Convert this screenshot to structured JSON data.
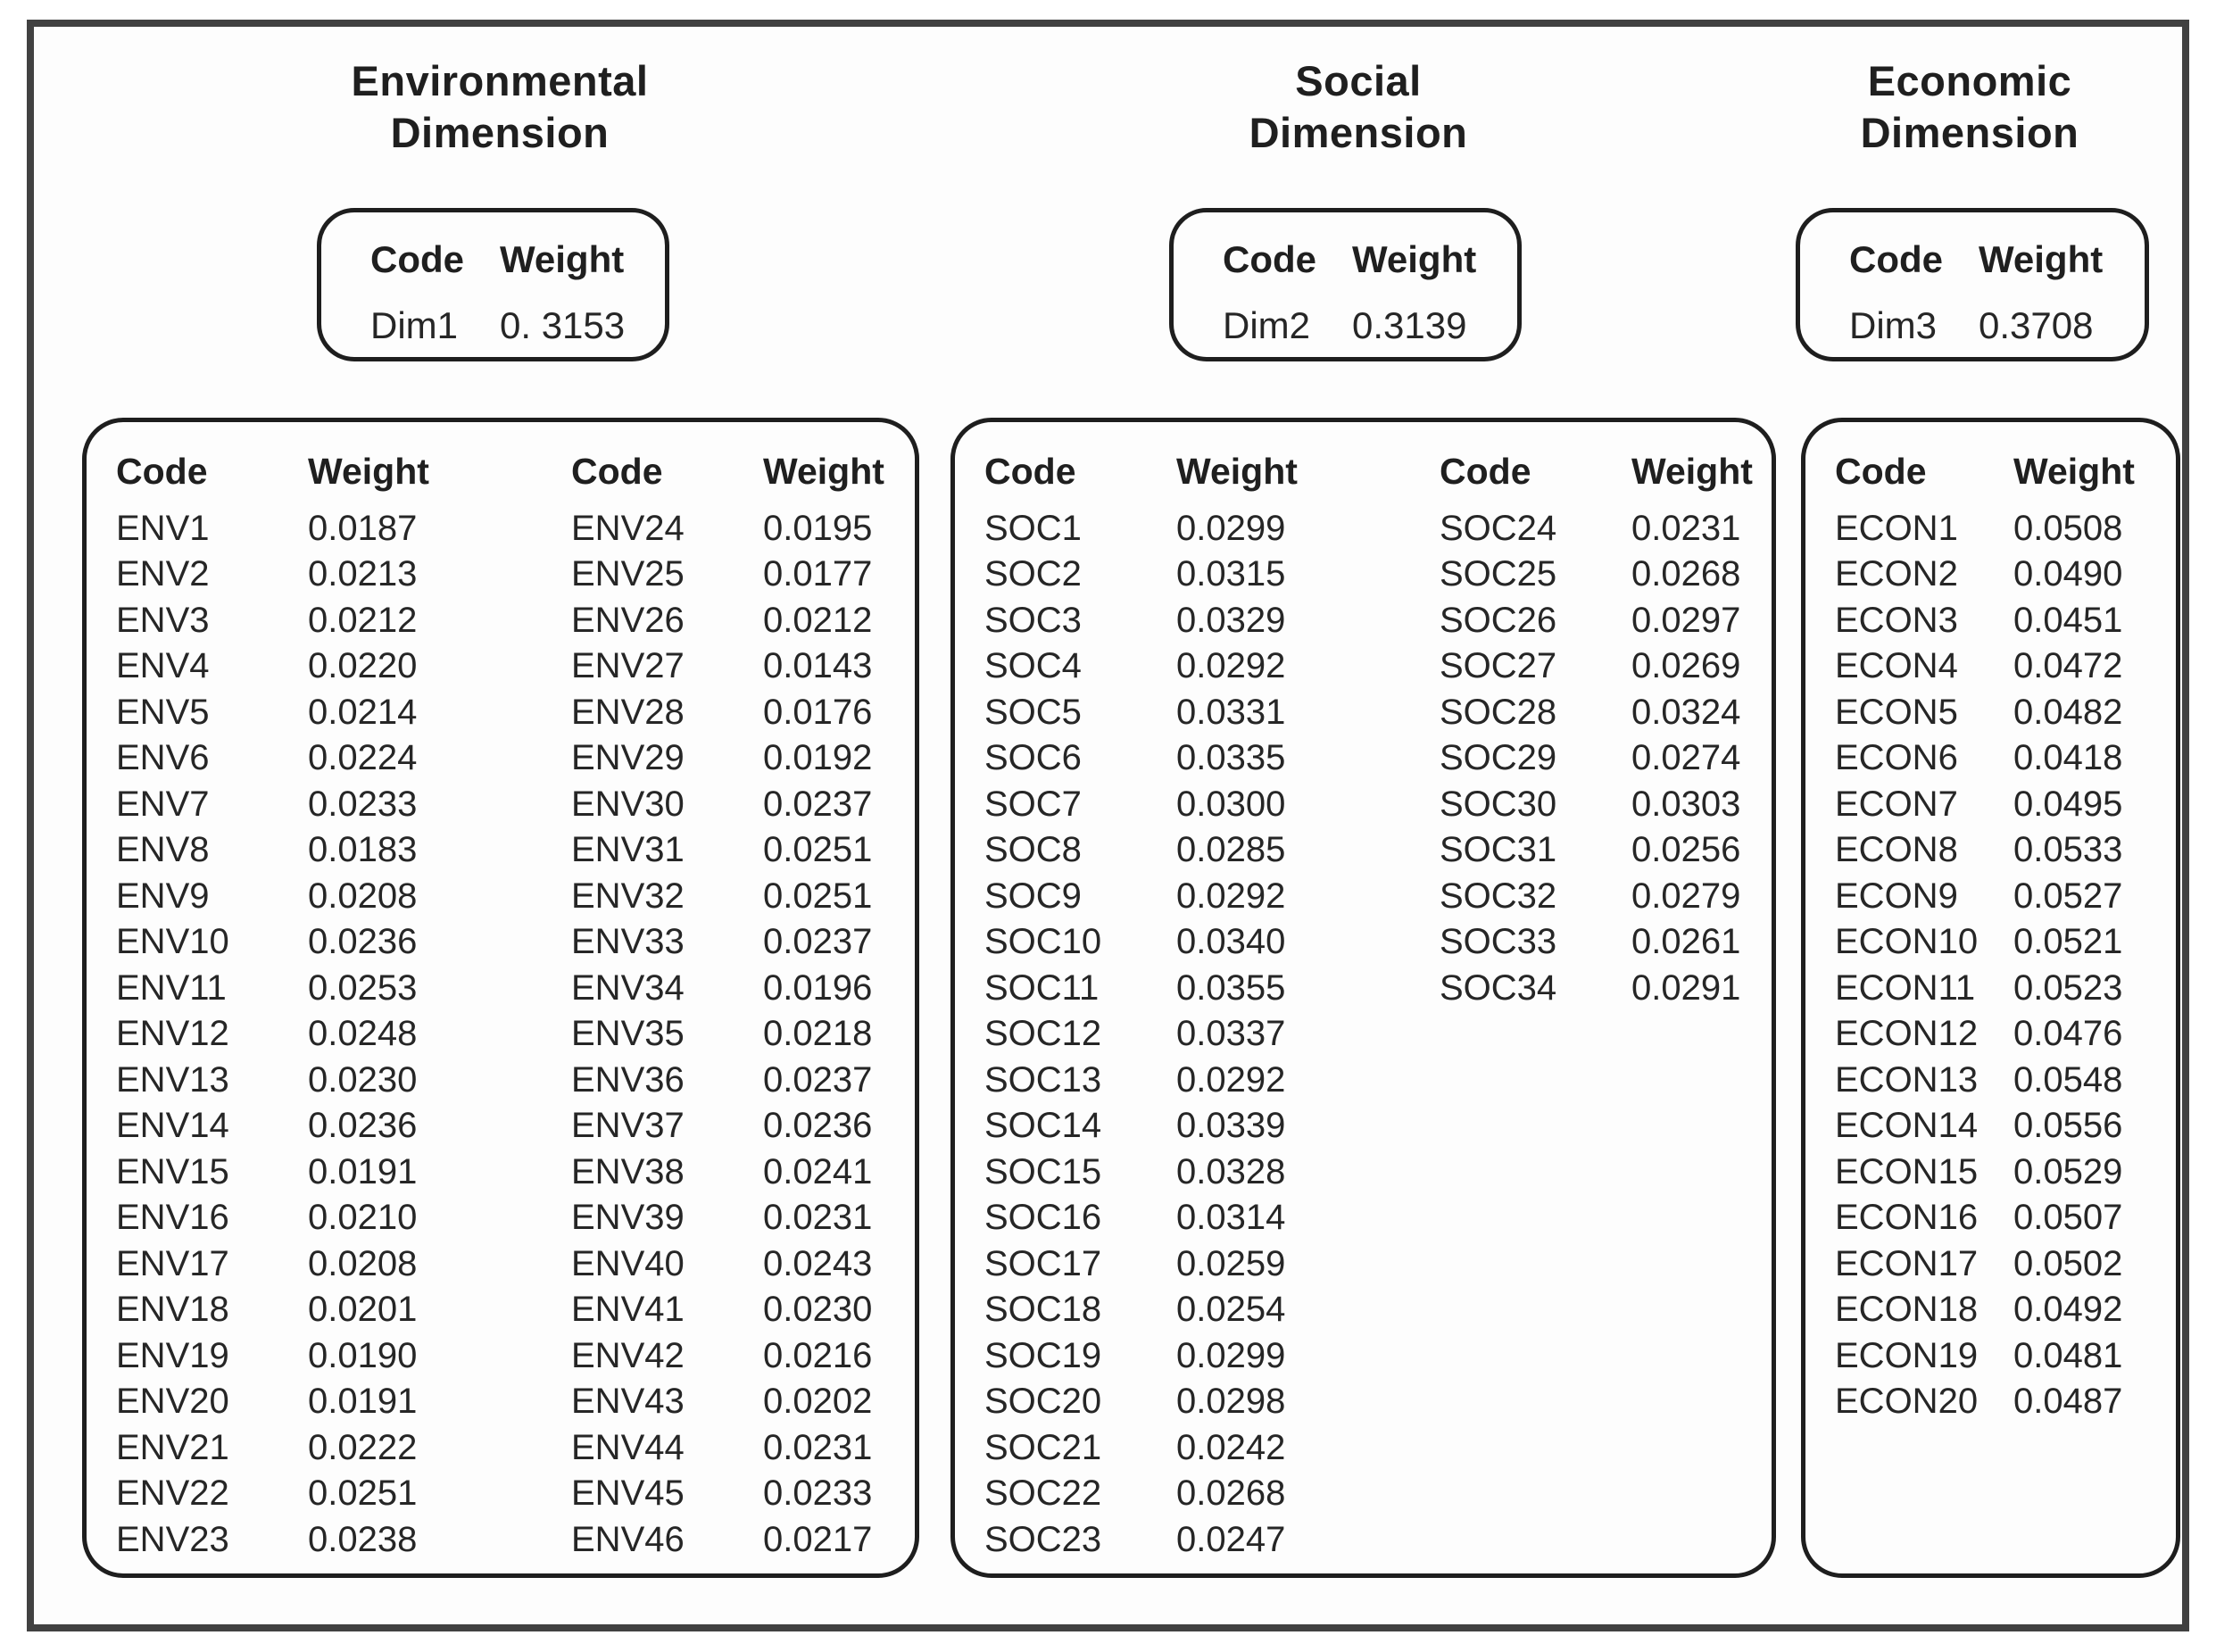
{
  "colors": {
    "outer_border": "#414141",
    "box_border": "#1e1e1e",
    "text": "#262626",
    "background": "#fdfdfd"
  },
  "figure": {
    "sections": [
      {
        "id": "environmental",
        "title_line1": "Environmental",
        "title_line2": "Dimension",
        "dim_box": {
          "code_header": "Code",
          "weight_header": "Weight",
          "code": "Dim1",
          "weight": "0. 3153"
        },
        "tables": [
          {
            "code_header": "Code",
            "weight_header": "Weight",
            "rows": [
              {
                "code": "ENV1",
                "weight": "0.0187"
              },
              {
                "code": "ENV2",
                "weight": "0.0213"
              },
              {
                "code": "ENV3",
                "weight": "0.0212"
              },
              {
                "code": "ENV4",
                "weight": "0.0220"
              },
              {
                "code": "ENV5",
                "weight": "0.0214"
              },
              {
                "code": "ENV6",
                "weight": "0.0224"
              },
              {
                "code": "ENV7",
                "weight": "0.0233"
              },
              {
                "code": "ENV8",
                "weight": "0.0183"
              },
              {
                "code": "ENV9",
                "weight": "0.0208"
              },
              {
                "code": "ENV10",
                "weight": "0.0236"
              },
              {
                "code": "ENV11",
                "weight": "0.0253"
              },
              {
                "code": "ENV12",
                "weight": "0.0248"
              },
              {
                "code": "ENV13",
                "weight": "0.0230"
              },
              {
                "code": "ENV14",
                "weight": "0.0236"
              },
              {
                "code": "ENV15",
                "weight": "0.0191"
              },
              {
                "code": "ENV16",
                "weight": "0.0210"
              },
              {
                "code": "ENV17",
                "weight": "0.0208"
              },
              {
                "code": "ENV18",
                "weight": "0.0201"
              },
              {
                "code": "ENV19",
                "weight": "0.0190"
              },
              {
                "code": "ENV20",
                "weight": "0.0191"
              },
              {
                "code": "ENV21",
                "weight": "0.0222"
              },
              {
                "code": "ENV22",
                "weight": "0.0251"
              },
              {
                "code": "ENV23",
                "weight": "0.0238"
              }
            ]
          },
          {
            "code_header": "Code",
            "weight_header": "Weight",
            "rows": [
              {
                "code": "ENV24",
                "weight": "0.0195"
              },
              {
                "code": "ENV25",
                "weight": "0.0177"
              },
              {
                "code": "ENV26",
                "weight": "0.0212"
              },
              {
                "code": "ENV27",
                "weight": "0.0143"
              },
              {
                "code": "ENV28",
                "weight": "0.0176"
              },
              {
                "code": "ENV29",
                "weight": "0.0192"
              },
              {
                "code": "ENV30",
                "weight": "0.0237"
              },
              {
                "code": "ENV31",
                "weight": "0.0251"
              },
              {
                "code": "ENV32",
                "weight": "0.0251"
              },
              {
                "code": "ENV33",
                "weight": "0.0237"
              },
              {
                "code": "ENV34",
                "weight": "0.0196"
              },
              {
                "code": "ENV35",
                "weight": "0.0218"
              },
              {
                "code": "ENV36",
                "weight": "0.0237"
              },
              {
                "code": "ENV37",
                "weight": "0.0236"
              },
              {
                "code": "ENV38",
                "weight": "0.0241"
              },
              {
                "code": "ENV39",
                "weight": "0.0231"
              },
              {
                "code": "ENV40",
                "weight": "0.0243"
              },
              {
                "code": "ENV41",
                "weight": "0.0230"
              },
              {
                "code": "ENV42",
                "weight": "0.0216"
              },
              {
                "code": "ENV43",
                "weight": "0.0202"
              },
              {
                "code": "ENV44",
                "weight": "0.0231"
              },
              {
                "code": "ENV45",
                "weight": "0.0233"
              },
              {
                "code": "ENV46",
                "weight": "0.0217"
              }
            ]
          }
        ]
      },
      {
        "id": "social",
        "title_line1": "Social",
        "title_line2": "Dimension",
        "dim_box": {
          "code_header": "Code",
          "weight_header": "Weight",
          "code": "Dim2",
          "weight": "0.3139"
        },
        "tables": [
          {
            "code_header": "Code",
            "weight_header": "Weight",
            "rows": [
              {
                "code": "SOC1",
                "weight": "0.0299"
              },
              {
                "code": "SOC2",
                "weight": "0.0315"
              },
              {
                "code": "SOC3",
                "weight": "0.0329"
              },
              {
                "code": "SOC4",
                "weight": "0.0292"
              },
              {
                "code": "SOC5",
                "weight": "0.0331"
              },
              {
                "code": "SOC6",
                "weight": "0.0335"
              },
              {
                "code": "SOC7",
                "weight": "0.0300"
              },
              {
                "code": "SOC8",
                "weight": "0.0285"
              },
              {
                "code": "SOC9",
                "weight": "0.0292"
              },
              {
                "code": "SOC10",
                "weight": "0.0340"
              },
              {
                "code": "SOC11",
                "weight": "0.0355"
              },
              {
                "code": "SOC12",
                "weight": "0.0337"
              },
              {
                "code": "SOC13",
                "weight": "0.0292"
              },
              {
                "code": "SOC14",
                "weight": "0.0339"
              },
              {
                "code": "SOC15",
                "weight": "0.0328"
              },
              {
                "code": "SOC16",
                "weight": "0.0314"
              },
              {
                "code": "SOC17",
                "weight": "0.0259"
              },
              {
                "code": "SOC18",
                "weight": "0.0254"
              },
              {
                "code": "SOC19",
                "weight": "0.0299"
              },
              {
                "code": "SOC20",
                "weight": "0.0298"
              },
              {
                "code": "SOC21",
                "weight": "0.0242"
              },
              {
                "code": "SOC22",
                "weight": "0.0268"
              },
              {
                "code": "SOC23",
                "weight": "0.0247"
              }
            ]
          },
          {
            "code_header": "Code",
            "weight_header": "Weight",
            "rows": [
              {
                "code": "SOC24",
                "weight": "0.0231"
              },
              {
                "code": "SOC25",
                "weight": "0.0268"
              },
              {
                "code": "SOC26",
                "weight": "0.0297"
              },
              {
                "code": "SOC27",
                "weight": "0.0269"
              },
              {
                "code": "SOC28",
                "weight": "0.0324"
              },
              {
                "code": "SOC29",
                "weight": "0.0274"
              },
              {
                "code": "SOC30",
                "weight": "0.0303"
              },
              {
                "code": "SOC31",
                "weight": "0.0256"
              },
              {
                "code": "SOC32",
                "weight": "0.0279"
              },
              {
                "code": "SOC33",
                "weight": "0.0261"
              },
              {
                "code": "SOC34",
                "weight": "0.0291"
              }
            ]
          }
        ]
      },
      {
        "id": "economic",
        "title_line1": "Economic",
        "title_line2": "Dimension",
        "dim_box": {
          "code_header": "Code",
          "weight_header": "Weight",
          "code": "Dim3",
          "weight": "0.3708"
        },
        "tables": [
          {
            "code_header": "Code",
            "weight_header": "Weight",
            "rows": [
              {
                "code": "ECON1",
                "weight": "0.0508"
              },
              {
                "code": "ECON2",
                "weight": "0.0490"
              },
              {
                "code": "ECON3",
                "weight": "0.0451"
              },
              {
                "code": "ECON4",
                "weight": "0.0472"
              },
              {
                "code": "ECON5",
                "weight": "0.0482"
              },
              {
                "code": "ECON6",
                "weight": "0.0418"
              },
              {
                "code": "ECON7",
                "weight": "0.0495"
              },
              {
                "code": "ECON8",
                "weight": "0.0533"
              },
              {
                "code": "ECON9",
                "weight": "0.0527"
              },
              {
                "code": "ECON10",
                "weight": "0.0521"
              },
              {
                "code": "ECON11",
                "weight": "0.0523"
              },
              {
                "code": "ECON12",
                "weight": "0.0476"
              },
              {
                "code": "ECON13",
                "weight": "0.0548"
              },
              {
                "code": "ECON14",
                "weight": "0.0556"
              },
              {
                "code": "ECON15",
                "weight": "0.0529"
              },
              {
                "code": "ECON16",
                "weight": "0.0507"
              },
              {
                "code": "ECON17",
                "weight": "0.0502"
              },
              {
                "code": "ECON18",
                "weight": "0.0492"
              },
              {
                "code": "ECON19",
                "weight": "0.0481"
              },
              {
                "code": "ECON20",
                "weight": "0.0487"
              }
            ]
          }
        ]
      }
    ]
  }
}
